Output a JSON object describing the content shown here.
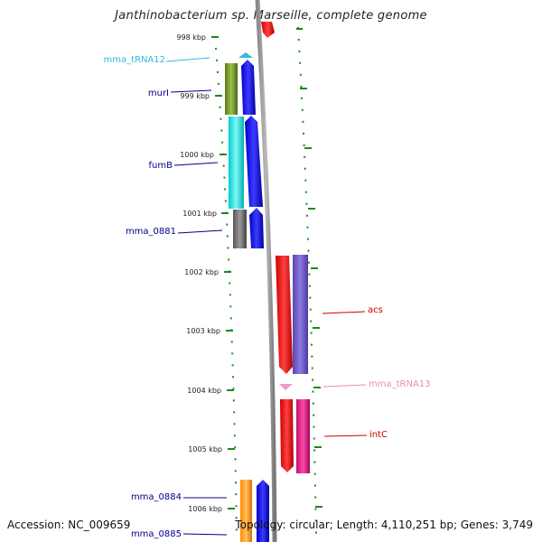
{
  "title": "Janthinobacterium sp. Marseille, complete genome",
  "accession": "Accession: NC_009659",
  "footer_info": "Topology: circular; Length: 4,110,251 bp; Genes: 3,749",
  "ticks": [
    "998 kbp",
    "999 kbp",
    "1000 kbp",
    "1001 kbp",
    "1002 kbp",
    "1003 kbp",
    "1004 kbp",
    "1005 kbp",
    "1006 kbp"
  ],
  "genes_left": [
    {
      "label": "mma_tRNA12",
      "color": "#33b8e0"
    },
    {
      "label": "murI",
      "color": "#00008b"
    },
    {
      "label": "fumB",
      "color": "#00008b"
    },
    {
      "label": "mma_0881",
      "color": "#00008b"
    },
    {
      "label": "mma_0884",
      "color": "#00008b"
    },
    {
      "label": "mma_0885",
      "color": "#00008b"
    }
  ],
  "genes_right": [
    {
      "label": "acs",
      "color": "#cc0000"
    },
    {
      "label": "mma_tRNA13",
      "color": "#ee88bb"
    },
    {
      "label": "intC",
      "color": "#cc0000"
    }
  ]
}
